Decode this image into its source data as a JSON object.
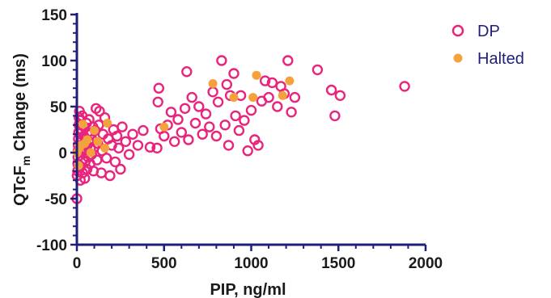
{
  "chart_data": {
    "type": "scatter",
    "xlabel": "PIP, ng/ml",
    "ylabel_main": "QTcF",
    "ylabel_sub": "m",
    "ylabel_rest": " Change (ms)",
    "xlim": [
      0,
      2000
    ],
    "ylim": [
      -100,
      150
    ],
    "x_ticks": [
      0,
      500,
      1000,
      1500,
      2000
    ],
    "y_ticks": [
      -100,
      -50,
      0,
      50,
      100,
      150
    ],
    "legend_position": "top-right",
    "colors": {
      "DP": "#e8247c",
      "Halted": "#f4a23c",
      "axis": "#1f1f7a"
    },
    "series": [
      {
        "name": "DP",
        "marker": "open-circle",
        "points": [
          [
            0,
            -50
          ],
          [
            2,
            -25
          ],
          [
            4,
            -20
          ],
          [
            5,
            -12
          ],
          [
            6,
            -5
          ],
          [
            7,
            2
          ],
          [
            8,
            8
          ],
          [
            9,
            15
          ],
          [
            10,
            22
          ],
          [
            12,
            30
          ],
          [
            13,
            38
          ],
          [
            15,
            45
          ],
          [
            18,
            35
          ],
          [
            20,
            -30
          ],
          [
            22,
            -15
          ],
          [
            24,
            0
          ],
          [
            26,
            12
          ],
          [
            28,
            25
          ],
          [
            30,
            40
          ],
          [
            33,
            -22
          ],
          [
            35,
            -8
          ],
          [
            38,
            5
          ],
          [
            40,
            18
          ],
          [
            42,
            28
          ],
          [
            45,
            -28
          ],
          [
            48,
            -10
          ],
          [
            50,
            3
          ],
          [
            52,
            15
          ],
          [
            55,
            32
          ],
          [
            58,
            -18
          ],
          [
            60,
            8
          ],
          [
            62,
            22
          ],
          [
            65,
            -5
          ],
          [
            68,
            12
          ],
          [
            70,
            36
          ],
          [
            75,
            -12
          ],
          [
            78,
            4
          ],
          [
            80,
            20
          ],
          [
            85,
            -2
          ],
          [
            88,
            14
          ],
          [
            92,
            28
          ],
          [
            95,
            -20
          ],
          [
            100,
            6
          ],
          [
            105,
            24
          ],
          [
            110,
            48
          ],
          [
            115,
            -8
          ],
          [
            120,
            10
          ],
          [
            125,
            30
          ],
          [
            130,
            45
          ],
          [
            140,
            -22
          ],
          [
            145,
            2
          ],
          [
            150,
            20
          ],
          [
            160,
            38
          ],
          [
            170,
            -6
          ],
          [
            180,
            15
          ],
          [
            190,
            -25
          ],
          [
            200,
            8
          ],
          [
            210,
            25
          ],
          [
            220,
            -10
          ],
          [
            230,
            18
          ],
          [
            240,
            5
          ],
          [
            250,
            -18
          ],
          [
            260,
            28
          ],
          [
            280,
            12
          ],
          [
            300,
            -2
          ],
          [
            320,
            20
          ],
          [
            350,
            8
          ],
          [
            380,
            24
          ],
          [
            420,
            6
          ],
          [
            460,
            5
          ],
          [
            465,
            55
          ],
          [
            470,
            70
          ],
          [
            480,
            26
          ],
          [
            500,
            18
          ],
          [
            520,
            30
          ],
          [
            540,
            44
          ],
          [
            560,
            12
          ],
          [
            580,
            36
          ],
          [
            600,
            22
          ],
          [
            620,
            48
          ],
          [
            630,
            88
          ],
          [
            640,
            14
          ],
          [
            660,
            60
          ],
          [
            680,
            32
          ],
          [
            700,
            50
          ],
          [
            720,
            20
          ],
          [
            740,
            42
          ],
          [
            760,
            28
          ],
          [
            780,
            66
          ],
          [
            800,
            18
          ],
          [
            810,
            55
          ],
          [
            830,
            100
          ],
          [
            850,
            30
          ],
          [
            860,
            74
          ],
          [
            870,
            8
          ],
          [
            880,
            62
          ],
          [
            900,
            86
          ],
          [
            910,
            40
          ],
          [
            930,
            24
          ],
          [
            940,
            62
          ],
          [
            960,
            35
          ],
          [
            980,
            2
          ],
          [
            1000,
            46
          ],
          [
            1020,
            14
          ],
          [
            1040,
            8
          ],
          [
            1060,
            56
          ],
          [
            1080,
            78
          ],
          [
            1100,
            60
          ],
          [
            1120,
            76
          ],
          [
            1150,
            50
          ],
          [
            1170,
            72
          ],
          [
            1190,
            64
          ],
          [
            1210,
            100
          ],
          [
            1230,
            44
          ],
          [
            1250,
            60
          ],
          [
            1380,
            90
          ],
          [
            1460,
            68
          ],
          [
            1480,
            40
          ],
          [
            1510,
            62
          ],
          [
            1880,
            72
          ]
        ]
      },
      {
        "name": "Halted",
        "marker": "filled-circle",
        "points": [
          [
            2,
            0
          ],
          [
            10,
            -14
          ],
          [
            15,
            5
          ],
          [
            25,
            8
          ],
          [
            35,
            31
          ],
          [
            45,
            10
          ],
          [
            60,
            14
          ],
          [
            80,
            0
          ],
          [
            100,
            24
          ],
          [
            120,
            12
          ],
          [
            160,
            5
          ],
          [
            175,
            32
          ],
          [
            500,
            28
          ],
          [
            780,
            75
          ],
          [
            900,
            60
          ],
          [
            1010,
            60
          ],
          [
            1030,
            84
          ],
          [
            1180,
            62
          ],
          [
            1220,
            78
          ]
        ]
      }
    ]
  }
}
